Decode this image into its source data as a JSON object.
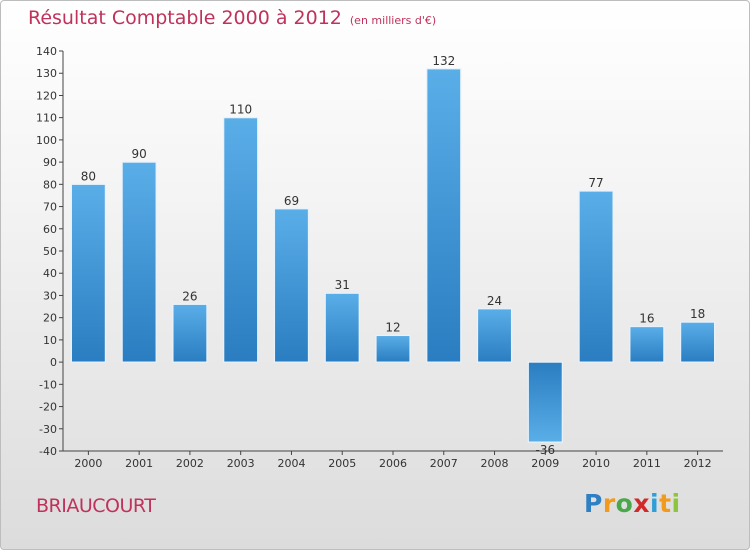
{
  "chart_data": {
    "type": "bar",
    "title": "Résultat Comptable 2000 à 2012",
    "subtitle": "(en milliers d'€)",
    "categories": [
      "2000",
      "2001",
      "2002",
      "2003",
      "2004",
      "2005",
      "2006",
      "2007",
      "2008",
      "2009",
      "2010",
      "2011",
      "2012"
    ],
    "values": [
      80,
      90,
      26,
      110,
      69,
      31,
      12,
      132,
      24,
      -36,
      77,
      16,
      18
    ],
    "ylim": [
      -40,
      140
    ],
    "yticks": [
      -40,
      -30,
      -20,
      -10,
      0,
      10,
      20,
      30,
      40,
      50,
      60,
      70,
      80,
      90,
      100,
      110,
      120,
      130,
      140
    ],
    "xlabel": "",
    "ylabel": "",
    "grid": false,
    "colors": {
      "bar_top": "#5aaee8",
      "bar_bottom": "#2a7dc0",
      "text": "#c0325b"
    }
  },
  "commune": "BRIAUCOURT",
  "logo": {
    "letters": [
      "P",
      "r",
      "o",
      "x",
      "i",
      "t",
      "i"
    ]
  }
}
